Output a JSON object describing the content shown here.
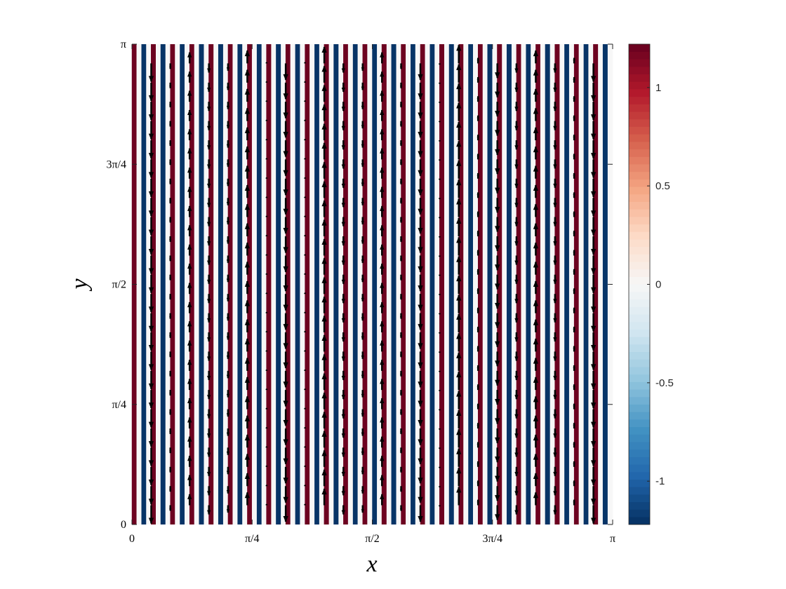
{
  "chart_data": {
    "type": "heatmap",
    "xlabel": "x",
    "ylabel": "y",
    "xlim": [
      0,
      3.1416
    ],
    "ylim": [
      0,
      3.1416
    ],
    "xticks": [
      0,
      {
        "value": 0.7854,
        "label": "π/4"
      },
      {
        "value": 1.5708,
        "label": "π/2"
      },
      {
        "value": 2.3562,
        "label": "3π/4"
      },
      {
        "value": 3.1416,
        "label": "π"
      }
    ],
    "yticks": [
      0,
      {
        "value": 0.7854,
        "label": "π/4"
      },
      {
        "value": 1.5708,
        "label": "π/2"
      },
      {
        "value": 2.3562,
        "label": "3π/4"
      },
      {
        "value": 3.1416,
        "label": "π"
      }
    ],
    "heatmap": {
      "x": [
        0.016,
        0.047,
        0.079,
        0.11,
        0.141,
        0.173,
        0.204,
        0.236,
        0.267,
        0.298,
        0.33,
        0.361,
        0.393,
        0.424,
        0.455,
        0.487,
        0.518,
        0.55,
        0.581,
        0.613,
        0.644,
        0.675,
        0.707,
        0.738,
        0.77,
        0.801,
        0.833,
        0.864,
        0.895,
        0.927,
        0.958,
        0.99,
        1.021,
        1.052,
        1.084,
        1.115,
        1.147,
        1.178,
        1.21,
        1.241,
        1.272,
        1.304,
        1.335,
        1.367,
        1.398,
        1.429,
        1.461,
        1.492,
        1.524,
        1.555,
        1.587,
        1.618,
        1.649,
        1.681,
        1.712,
        1.744,
        1.775,
        1.806,
        1.838,
        1.869,
        1.901,
        1.932,
        1.964,
        1.995,
        2.026,
        2.058,
        2.089,
        2.121,
        2.152,
        2.183,
        2.215,
        2.246,
        2.278,
        2.309,
        2.34,
        2.372,
        2.403,
        2.435,
        2.466,
        2.498,
        2.529,
        2.56,
        2.592,
        2.623,
        2.655,
        2.686,
        2.717,
        2.749,
        2.78,
        2.812,
        2.843,
        2.874,
        2.906,
        2.937,
        2.969,
        3.0,
        3.031,
        3.063,
        3.094,
        3.126
      ],
      "values": [
        1.2,
        0,
        -1.2,
        0,
        1.2,
        0,
        -1.2,
        0,
        1.2,
        0,
        -1.2,
        0,
        1.2,
        0,
        -1.2,
        0,
        1.2,
        0,
        -1.2,
        0,
        1.2,
        0,
        -1.2,
        0,
        1.2,
        0,
        -1.2,
        0,
        1.2,
        0,
        -1.2,
        0,
        1.2,
        0,
        -1.2,
        0,
        1.2,
        0,
        -1.2,
        0,
        1.2,
        0,
        -1.2,
        0,
        1.2,
        0,
        -1.2,
        0,
        1.2,
        0,
        -1.2,
        0,
        1.2,
        0,
        -1.2,
        0,
        1.2,
        0,
        -1.2,
        0,
        1.2,
        0,
        -1.2,
        0,
        1.2,
        0,
        -1.2,
        0,
        1.2,
        0,
        -1.2,
        0,
        1.2,
        0,
        -1.2,
        0,
        1.2,
        0,
        -1.2,
        0,
        1.2,
        0,
        -1.2,
        0,
        1.2,
        0,
        -1.2,
        0,
        1.2,
        0,
        -1.2,
        0,
        1.2,
        0,
        -1.2,
        0,
        1.2,
        0,
        -1.2,
        0
      ]
    },
    "quiver": {
      "color": "#000000",
      "x": [
        0.126,
        0.251,
        0.377,
        0.503,
        0.628,
        0.754,
        0.88,
        1.005,
        1.131,
        1.257,
        1.382,
        1.508,
        1.634,
        1.759,
        1.885,
        2.011,
        2.136,
        2.262,
        2.388,
        2.513,
        2.639,
        2.765,
        2.89,
        3.016
      ],
      "y": [
        0.126,
        0.251,
        0.377,
        0.503,
        0.628,
        0.754,
        0.88,
        1.005,
        1.131,
        1.257,
        1.382,
        1.508,
        1.634,
        1.759,
        1.885,
        2.011,
        2.136,
        2.262,
        2.388,
        2.513,
        2.639,
        2.765,
        2.89,
        3.016
      ],
      "v": [
        -1,
        -0.3,
        0.6,
        -0.5,
        -0.4,
        0.7,
        0.05,
        -0.9,
        0.05,
        0.9,
        -0.5,
        -0.4,
        0.6,
        -0.3,
        -0.9,
        -0.05,
        1,
        0.3,
        -0.8,
        -0.5,
        0.7,
        -0.5,
        0.3,
        -1
      ]
    },
    "colorbar": {
      "clim": [
        -1.22,
        1.22
      ],
      "ticks": [
        -1,
        -0.5,
        0,
        0.5,
        1
      ],
      "colormap": [
        "#053061",
        "#2166ac",
        "#4393c3",
        "#92c5de",
        "#d1e5f0",
        "#f7f7f7",
        "#fddbc7",
        "#f4a582",
        "#d6604d",
        "#b2182b",
        "#67001f"
      ]
    }
  }
}
